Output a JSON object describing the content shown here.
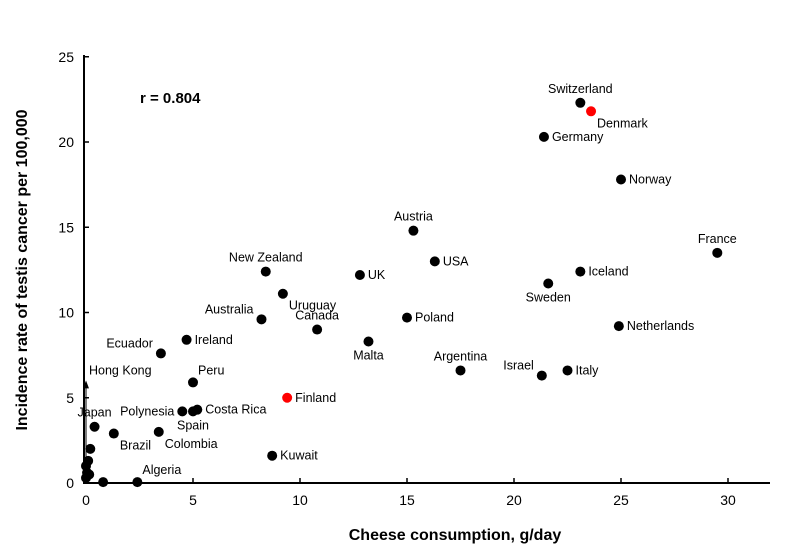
{
  "chart_data": {
    "type": "scatter",
    "title": "",
    "annotation": "r = 0.804",
    "xlabel": "Cheese consumption, g/day",
    "ylabel": "Incidence rate of testis cancer per 100,000",
    "xlim": [
      0,
      32
    ],
    "ylim": [
      0,
      25
    ],
    "xticks": [
      "0",
      "5",
      "10",
      "15",
      "20",
      "25",
      "30"
    ],
    "yticks": [
      "0",
      "5",
      "10",
      "15",
      "20",
      "25"
    ],
    "grid": false,
    "highlight_color": "#ff0000",
    "point_color": "#000000",
    "points": [
      {
        "name": "Switzerland",
        "x": 23.1,
        "y": 22.3,
        "pos": "above"
      },
      {
        "name": "Denmark",
        "x": 23.6,
        "y": 21.8,
        "pos": "below-right",
        "highlight": true
      },
      {
        "name": "Germany",
        "x": 21.4,
        "y": 20.3,
        "pos": "right"
      },
      {
        "name": "Norway",
        "x": 25.0,
        "y": 17.8,
        "pos": "right"
      },
      {
        "name": "France",
        "x": 29.5,
        "y": 13.5,
        "pos": "above"
      },
      {
        "name": "Austria",
        "x": 15.3,
        "y": 14.8,
        "pos": "above"
      },
      {
        "name": "USA",
        "x": 16.3,
        "y": 13.0,
        "pos": "right"
      },
      {
        "name": "UK",
        "x": 12.8,
        "y": 12.2,
        "pos": "right"
      },
      {
        "name": "New Zealand",
        "x": 8.4,
        "y": 12.4,
        "pos": "above"
      },
      {
        "name": "Uruguay",
        "x": 9.2,
        "y": 11.1,
        "pos": "below-right"
      },
      {
        "name": "Iceland",
        "x": 23.1,
        "y": 12.4,
        "pos": "right"
      },
      {
        "name": "Sweden",
        "x": 21.6,
        "y": 11.7,
        "pos": "below"
      },
      {
        "name": "Netherlands",
        "x": 24.9,
        "y": 9.2,
        "pos": "right"
      },
      {
        "name": "Poland",
        "x": 15.0,
        "y": 9.7,
        "pos": "right"
      },
      {
        "name": "Canada",
        "x": 10.8,
        "y": 9.0,
        "pos": "above"
      },
      {
        "name": "Malta",
        "x": 13.2,
        "y": 8.3,
        "pos": "below"
      },
      {
        "name": "Australia",
        "x": 8.2,
        "y": 9.6,
        "pos": "above-left"
      },
      {
        "name": "Ireland",
        "x": 4.7,
        "y": 8.4,
        "pos": "right"
      },
      {
        "name": "Ecuador",
        "x": 3.5,
        "y": 7.6,
        "pos": "above-left"
      },
      {
        "name": "Peru",
        "x": 5.0,
        "y": 5.9,
        "pos": "above-right"
      },
      {
        "name": "Argentina",
        "x": 17.5,
        "y": 6.6,
        "pos": "above"
      },
      {
        "name": "Israel",
        "x": 21.3,
        "y": 6.3,
        "pos": "above-left"
      },
      {
        "name": "Italy",
        "x": 22.5,
        "y": 6.6,
        "pos": "right"
      },
      {
        "name": "Finland",
        "x": 9.4,
        "y": 5.0,
        "pos": "right",
        "highlight": true
      },
      {
        "name": "Polynesia",
        "x": 4.5,
        "y": 4.2,
        "pos": "left"
      },
      {
        "name": "Spain",
        "x": 5.0,
        "y": 4.2,
        "pos": "below"
      },
      {
        "name": "Costa Rica",
        "x": 5.2,
        "y": 4.3,
        "pos": "right"
      },
      {
        "name": "Japan",
        "x": 0.4,
        "y": 3.3,
        "pos": "above"
      },
      {
        "name": "Brazil",
        "x": 1.3,
        "y": 2.9,
        "pos": "below-right"
      },
      {
        "name": "Colombia",
        "x": 3.4,
        "y": 3.0,
        "pos": "below-right"
      },
      {
        "name": "Algeria",
        "x": 2.4,
        "y": 0.05,
        "pos": "above-right"
      },
      {
        "name": "Kuwait",
        "x": 8.7,
        "y": 1.6,
        "pos": "right"
      },
      {
        "name": "",
        "x": 0.2,
        "y": 2.0
      },
      {
        "name": "",
        "x": 0.1,
        "y": 1.3
      },
      {
        "name": "",
        "x": 0.0,
        "y": 1.0
      },
      {
        "name": "",
        "x": 0.05,
        "y": 0.6
      },
      {
        "name": "",
        "x": 0.15,
        "y": 0.5
      },
      {
        "name": "",
        "x": 0.0,
        "y": 0.3
      },
      {
        "name": "",
        "x": 0.8,
        "y": 0.05
      }
    ],
    "arrow_annotation": {
      "label": "Hong Kong",
      "x": 0.0,
      "y_from": 0.3,
      "y_to": 5.9
    }
  }
}
